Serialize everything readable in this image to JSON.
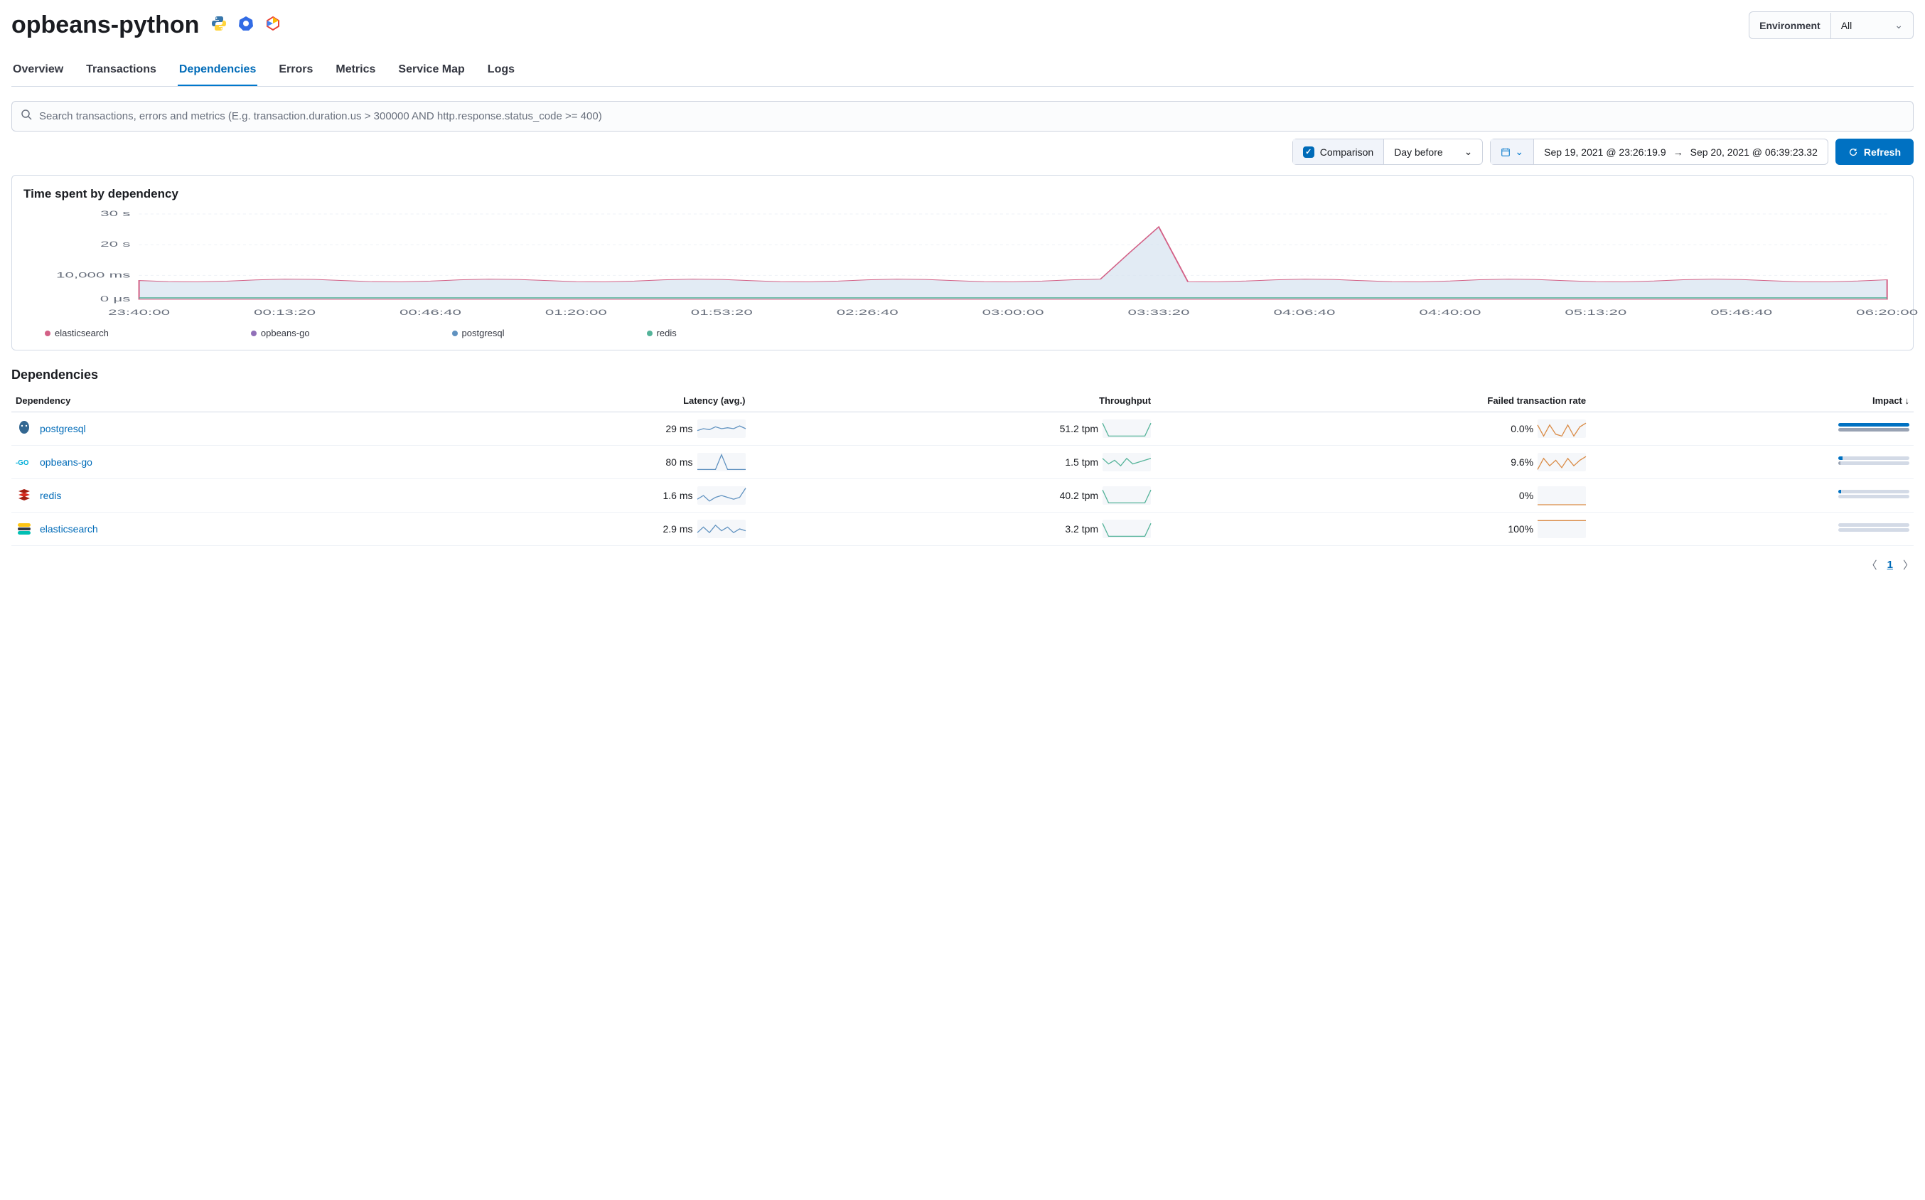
{
  "header": {
    "title": "opbeans-python",
    "icons": [
      "python-icon",
      "kubernetes-icon",
      "gcp-icon"
    ],
    "environment_label": "Environment",
    "environment_value": "All"
  },
  "tabs": [
    {
      "label": "Overview",
      "active": false
    },
    {
      "label": "Transactions",
      "active": false
    },
    {
      "label": "Dependencies",
      "active": true
    },
    {
      "label": "Errors",
      "active": false
    },
    {
      "label": "Metrics",
      "active": false
    },
    {
      "label": "Service Map",
      "active": false
    },
    {
      "label": "Logs",
      "active": false
    }
  ],
  "search": {
    "placeholder": "Search transactions, errors and metrics (E.g. transaction.duration.us > 300000 AND http.response.status_code >= 400)"
  },
  "controls": {
    "comparison_label": "Comparison",
    "comparison_enabled": true,
    "comparison_range": "Day before",
    "date_from": "Sep 19, 2021 @ 23:26:19.9",
    "date_to": "Sep 20, 2021 @ 06:39:23.32",
    "refresh_label": "Refresh"
  },
  "chart": {
    "title": "Time spent by dependency",
    "type": "area",
    "background_color": "#ffffff",
    "grid_color": "#eef2f7",
    "y_ticks": [
      "0 μs",
      "10,000 ms",
      "20 s",
      "30 s"
    ],
    "y_tick_positions": [
      1.0,
      0.72,
      0.36,
      0.0
    ],
    "x_ticks": [
      "23:40:00",
      "00:13:20",
      "00:46:40",
      "01:20:00",
      "01:53:20",
      "02:26:40",
      "03:00:00",
      "03:33:20",
      "04:06:40",
      "04:40:00",
      "05:13:20",
      "05:46:40",
      "06:20:00"
    ],
    "series": [
      {
        "name": "elasticsearch",
        "color": "#d36086"
      },
      {
        "name": "opbeans-go",
        "color": "#9170b8"
      },
      {
        "name": "postgresql",
        "color": "#6092c0"
      },
      {
        "name": "redis",
        "color": "#54b399"
      }
    ],
    "baseline_y": 0.78,
    "spike_x": 0.58,
    "spike_top_y": 0.05,
    "area_fill_top": "#d6e3f0",
    "area_stroke": "#d36086",
    "lower_stroke": "#54b399"
  },
  "dependencies_section": {
    "title": "Dependencies",
    "columns": [
      "Dependency",
      "Latency (avg.)",
      "Throughput",
      "Failed transaction rate",
      "Impact"
    ],
    "sort_col": 4,
    "sort_dir": "desc",
    "rows": [
      {
        "icon": "postgresql-icon",
        "icon_color": "#336791",
        "name": "postgresql",
        "latency": "29 ms",
        "throughput": "51.2 tpm",
        "failed": "0.0%",
        "spark_latency": {
          "color": "#6092c0",
          "points": [
            0.6,
            0.5,
            0.55,
            0.4,
            0.5,
            0.45,
            0.5,
            0.35,
            0.5
          ]
        },
        "spark_throughput": {
          "color": "#54b399",
          "points": [
            0.2,
            0.9,
            0.9,
            0.9,
            0.9,
            0.9,
            0.9,
            0.9,
            0.2
          ]
        },
        "spark_failed": {
          "color": "#da8b45",
          "points": [
            0.3,
            0.9,
            0.3,
            0.8,
            0.9,
            0.3,
            0.9,
            0.4,
            0.2
          ]
        },
        "impact": {
          "primary": 1.0,
          "comparison": 1.0
        }
      },
      {
        "icon": "go-icon",
        "icon_color": "#00add8",
        "name": "opbeans-go",
        "latency": "80 ms",
        "throughput": "1.5 tpm",
        "failed": "9.6%",
        "spark_latency": {
          "color": "#6092c0",
          "points": [
            0.9,
            0.9,
            0.9,
            0.9,
            0.1,
            0.9,
            0.9,
            0.9,
            0.9
          ]
        },
        "spark_throughput": {
          "color": "#54b399",
          "points": [
            0.3,
            0.6,
            0.4,
            0.7,
            0.3,
            0.6,
            0.5,
            0.4,
            0.3
          ]
        },
        "spark_failed": {
          "color": "#da8b45",
          "points": [
            0.9,
            0.3,
            0.7,
            0.4,
            0.8,
            0.3,
            0.7,
            0.4,
            0.2
          ]
        },
        "impact": {
          "primary": 0.06,
          "comparison": 0.03
        }
      },
      {
        "icon": "redis-icon",
        "icon_color": "#a41e11",
        "name": "redis",
        "latency": "1.6 ms",
        "throughput": "40.2 tpm",
        "failed": "0%",
        "spark_latency": {
          "color": "#6092c0",
          "points": [
            0.7,
            0.5,
            0.8,
            0.6,
            0.5,
            0.6,
            0.7,
            0.6,
            0.1
          ]
        },
        "spark_throughput": {
          "color": "#54b399",
          "points": [
            0.2,
            0.9,
            0.9,
            0.9,
            0.9,
            0.9,
            0.9,
            0.9,
            0.2
          ]
        },
        "spark_failed": {
          "color": "#da8b45",
          "points": [
            1.0,
            1.0,
            1.0,
            1.0,
            1.0,
            1.0,
            1.0,
            1.0,
            1.0
          ]
        },
        "impact": {
          "primary": 0.04,
          "comparison": 0.0
        }
      },
      {
        "icon": "elasticsearch-icon",
        "icon_color": "#f0c000",
        "name": "elasticsearch",
        "latency": "2.9 ms",
        "throughput": "3.2 tpm",
        "failed": "100%",
        "spark_latency": {
          "color": "#6092c0",
          "points": [
            0.7,
            0.4,
            0.7,
            0.3,
            0.6,
            0.4,
            0.7,
            0.5,
            0.6
          ]
        },
        "spark_throughput": {
          "color": "#54b399",
          "points": [
            0.2,
            0.9,
            0.9,
            0.9,
            0.9,
            0.9,
            0.9,
            0.9,
            0.2
          ]
        },
        "spark_failed": {
          "color": "#da8b45",
          "points": [
            0.05,
            0.05,
            0.05,
            0.05,
            0.05,
            0.05,
            0.05,
            0.05,
            0.05
          ]
        },
        "impact": {
          "primary": 0.0,
          "comparison": 0.0
        }
      }
    ],
    "impact_colors": {
      "primary": "#0071c2",
      "comparison": "#98a2b3",
      "track": "#d3dae6"
    }
  },
  "pagination": {
    "current": "1"
  }
}
